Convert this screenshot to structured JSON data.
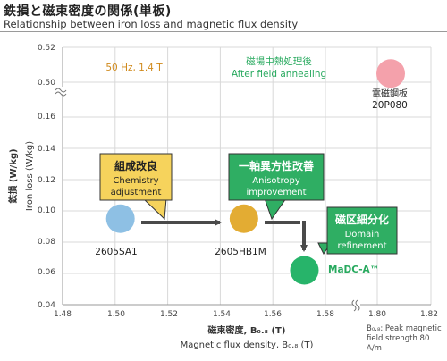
{
  "header": {
    "title_jp": "鉄損と磁束密度の関係(単板)",
    "title_en": "Relationship between iron loss and magnetic flux density"
  },
  "chart_data": {
    "type": "scatter",
    "xlabel_jp": "磁束密度, B₀.₈ (T)",
    "xlabel_en": "Magnetic flux density, B₀.₈ (T)",
    "ylabel_jp": "鉄損 (W/kg)",
    "ylabel_en": "Iron loss (W/kg)",
    "xlim": [
      1.48,
      1.82
    ],
    "ylim": [
      0.04,
      0.52
    ],
    "x_ticks": [
      "1.48",
      "1.50",
      "1.52",
      "1.54",
      "1.56",
      "1.58",
      "1.80",
      "1.82"
    ],
    "y_ticks": [
      "0.04",
      "0.06",
      "0.08",
      "0.10",
      "0.12",
      "0.14",
      "0.16",
      "0.50",
      "0.52"
    ],
    "axis_breaks": [
      "x: 1.58–1.80",
      "y: 0.16–0.50"
    ],
    "grid": true,
    "condition_label": "50 Hz, 1.4 T",
    "points": [
      {
        "name": "2605SA1",
        "x": 1.502,
        "y": 0.095,
        "color": "#8ec0e4"
      },
      {
        "name": "2605HB1M",
        "x": 1.549,
        "y": 0.095,
        "color": "#e3ac33"
      },
      {
        "name": "MaDC-A™",
        "x": 1.572,
        "y": 0.062,
        "color": "#27b46a"
      },
      {
        "name_lines": [
          "電磁鋼板",
          "20P080"
        ],
        "x": 1.805,
        "y": 0.505,
        "color": "#f4a1ab"
      }
    ],
    "annotations": {
      "after_annealing": [
        "磁場中熱処理後",
        "After field annealing"
      ],
      "box1": {
        "jp": "組成改良",
        "en": [
          "Chemistry",
          "adjustment"
        ]
      },
      "box2": {
        "jp": "一軸異方性改善",
        "en": [
          "Anisotropy",
          "improvement"
        ]
      },
      "box3": {
        "jp": "磁区細分化",
        "en": [
          "Domain",
          "refinement"
        ]
      }
    },
    "colors": {
      "box1": "#f6d35c",
      "box2": "#2fae63",
      "box3": "#2fae63",
      "arrow": "#4a4a4a"
    },
    "footnote": [
      "B₀.₈: Peak magnetic",
      "field strength 80 A/m"
    ]
  }
}
